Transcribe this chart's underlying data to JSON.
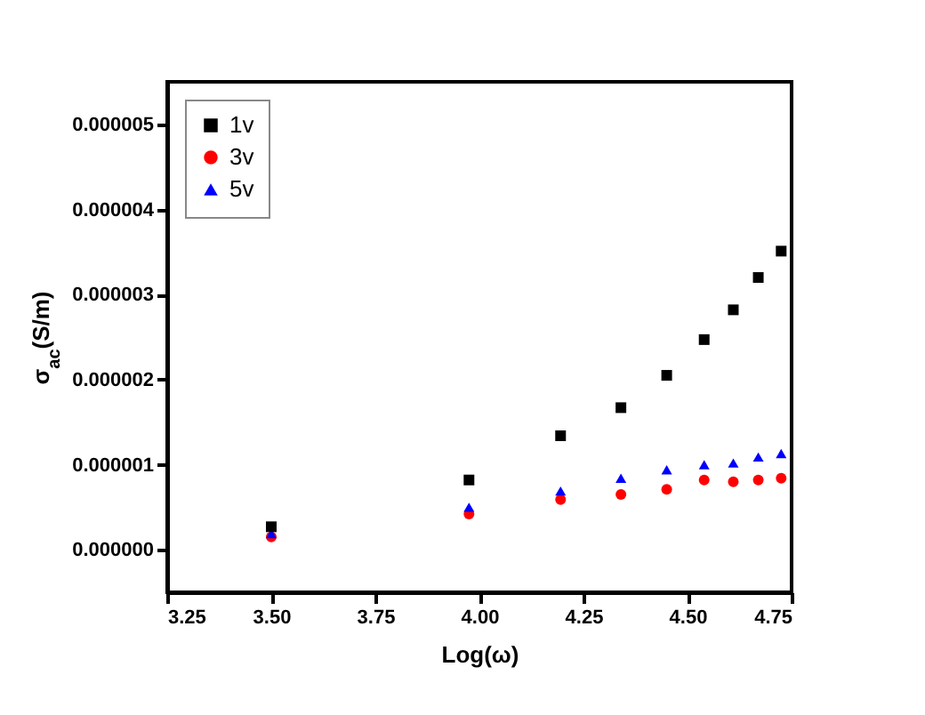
{
  "chart_data": {
    "type": "scatter",
    "xlabel": "Log(ω)",
    "ylabel": "σ$_{ac}$(S/m)",
    "x": [
      3.5,
      3.975,
      4.195,
      4.34,
      4.45,
      4.54,
      4.61,
      4.67,
      4.725
    ],
    "series": [
      {
        "name": "1v",
        "color": "#000000",
        "marker": "square",
        "values": [
          2.7e-07,
          8.2e-07,
          1.34e-06,
          1.67e-06,
          2.05e-06,
          2.47e-06,
          2.82e-06,
          3.2e-06,
          3.51e-06
        ]
      },
      {
        "name": "3v",
        "color": "#ff0000",
        "marker": "circle",
        "values": [
          1.5e-07,
          4.2e-07,
          5.9e-07,
          6.5e-07,
          7.1e-07,
          8.2e-07,
          8e-07,
          8.2e-07,
          8.4e-07
        ]
      },
      {
        "name": "5v",
        "color": "#0000ff",
        "marker": "triangle",
        "values": [
          1.9e-07,
          5e-07,
          6.9e-07,
          8.4e-07,
          9.4e-07,
          1e-06,
          1.02e-06,
          1.09e-06,
          1.13e-06
        ]
      }
    ],
    "xlim": [
      3.25,
      4.75
    ],
    "xticks": [
      {
        "value": 3.25,
        "label": "3.25"
      },
      {
        "value": 3.5,
        "label": "3.50"
      },
      {
        "value": 3.75,
        "label": "3.75"
      },
      {
        "value": 4,
        "label": "4.00"
      },
      {
        "value": 4.25,
        "label": "4.25"
      },
      {
        "value": 4.5,
        "label": "4.50"
      },
      {
        "value": 4.75,
        "label": "4.75"
      }
    ],
    "ylim": [
      -5e-07,
      5.5e-06
    ],
    "yticks": [
      {
        "value": 0,
        "label": "0.000000"
      },
      {
        "value": 1e-06,
        "label": "0.000001"
      },
      {
        "value": 2e-06,
        "label": "0.000002"
      },
      {
        "value": 3e-06,
        "label": "0.000003"
      },
      {
        "value": 4e-06,
        "label": "0.000004"
      },
      {
        "value": 5e-06,
        "label": "0.000005"
      }
    ],
    "grid": false,
    "legend": "top left"
  }
}
